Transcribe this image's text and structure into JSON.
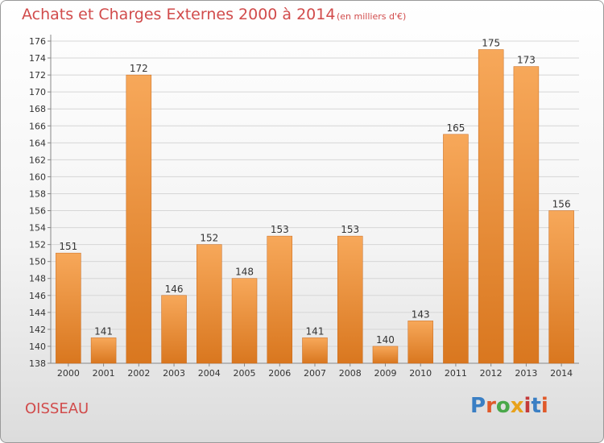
{
  "header": {
    "title": "Achats et Charges Externes 2000 à 2014",
    "subtitle": "(en milliers d'€)"
  },
  "footer": {
    "commune": "OISSEAU",
    "logo": "Proxiti",
    "logo_colors": [
      "#3a7fc4",
      "#e05a2a",
      "#4aa84a",
      "#e8a21c",
      "#c43a3a",
      "#3a7fc4",
      "#e05a2a"
    ]
  },
  "chart_data": {
    "type": "bar",
    "categories": [
      "2000",
      "2001",
      "2002",
      "2003",
      "2004",
      "2005",
      "2006",
      "2007",
      "2008",
      "2009",
      "2010",
      "2011",
      "2012",
      "2013",
      "2014"
    ],
    "values": [
      151,
      141,
      172,
      146,
      152,
      148,
      153,
      141,
      153,
      140,
      143,
      165,
      175,
      173,
      156
    ],
    "ylim": [
      138,
      176
    ],
    "yticks": [
      138,
      140,
      142,
      144,
      146,
      148,
      150,
      152,
      154,
      156,
      158,
      160,
      162,
      164,
      166,
      168,
      170,
      172,
      174,
      176
    ],
    "grid": true,
    "bar_color_top": "#f7a85a",
    "bar_color_bottom": "#d9771f",
    "legend": "none"
  }
}
